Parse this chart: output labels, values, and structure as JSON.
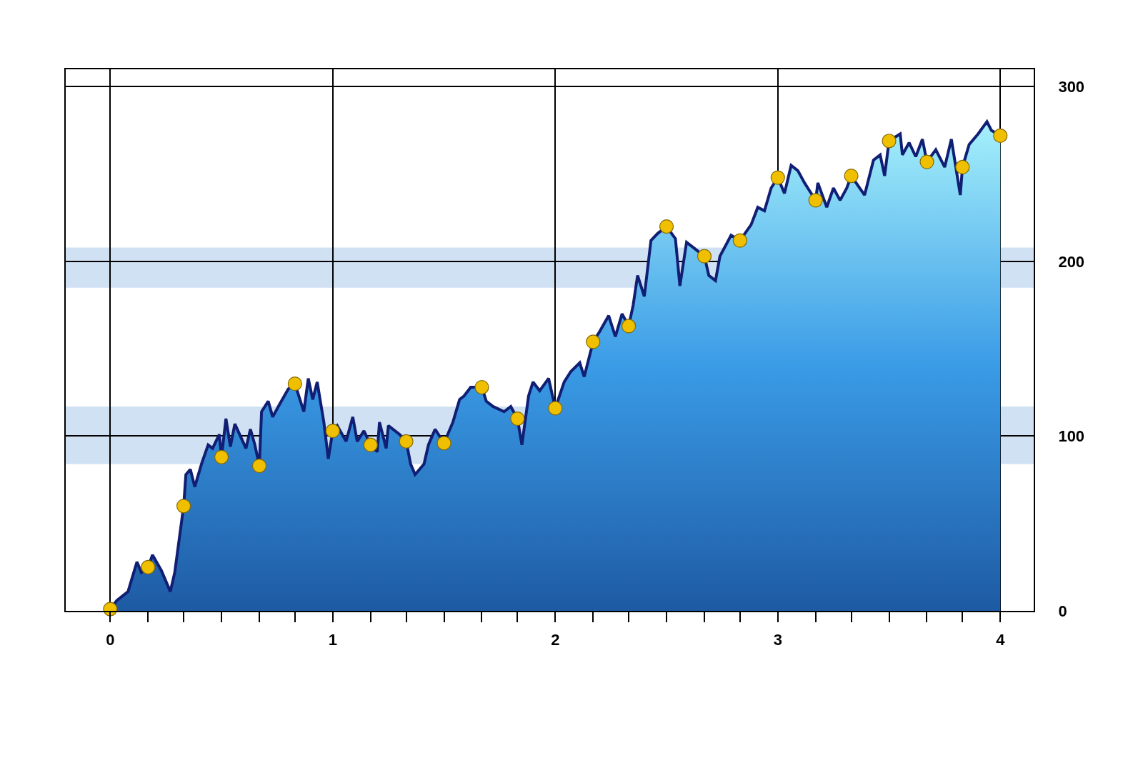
{
  "chart_data": {
    "type": "area",
    "xlim": [
      -0.2,
      4.15
    ],
    "xticks": [
      0,
      {
        "value": 0.17,
        "label": null
      },
      {
        "value": 0.33,
        "label": null
      },
      {
        "value": 0.5,
        "label": null
      },
      {
        "value": 0.67,
        "label": null
      },
      {
        "value": 0.83,
        "label": null
      },
      1,
      {
        "value": 1.17,
        "label": null
      },
      {
        "value": 1.33,
        "label": null
      },
      {
        "value": 1.5,
        "label": null
      },
      {
        "value": 1.67,
        "label": null
      },
      {
        "value": 1.83,
        "label": null
      },
      2,
      {
        "value": 2.17,
        "label": null
      },
      {
        "value": 2.33,
        "label": null
      },
      {
        "value": 2.5,
        "label": null
      },
      {
        "value": 2.67,
        "label": null
      },
      {
        "value": 2.83,
        "label": null
      },
      3,
      {
        "value": 3.17,
        "label": null
      },
      {
        "value": 3.33,
        "label": null
      },
      {
        "value": 3.5,
        "label": null
      },
      {
        "value": 3.67,
        "label": null
      },
      {
        "value": 3.83,
        "label": null
      },
      4
    ],
    "ylim": [
      0,
      310
    ],
    "yticks": [
      0,
      100,
      200,
      300
    ],
    "grid": true,
    "bands": [
      {
        "axis": "y",
        "from": 84,
        "to": 117,
        "color": "#bcd4ee"
      },
      {
        "axis": "y",
        "from": 185,
        "to": 208,
        "color": "#bcd4ee"
      }
    ],
    "series": [
      {
        "color": "#3a9be6",
        "marker": "none",
        "x": [
          0,
          0.03,
          0.08,
          0.12,
          0.14,
          0.17,
          0.19,
          0.23,
          0.27,
          0.29,
          0.33,
          0.34,
          0.36,
          0.38,
          0.41,
          0.44,
          0.46,
          0.49,
          0.5,
          0.52,
          0.54,
          0.56,
          0.61,
          0.63,
          0.65,
          0.67,
          0.68,
          0.71,
          0.73,
          0.76,
          0.8,
          0.83,
          0.87,
          0.89,
          0.91,
          0.93,
          0.96,
          0.98,
          1,
          1.02,
          1.06,
          1.09,
          1.11,
          1.14,
          1.17,
          1.2,
          1.21,
          1.24,
          1.25,
          1.3,
          1.33,
          1.35,
          1.37,
          1.41,
          1.43,
          1.46,
          1.5,
          1.54,
          1.57,
          1.59,
          1.62,
          1.67,
          1.69,
          1.72,
          1.77,
          1.8,
          1.83,
          1.85,
          1.88,
          1.9,
          1.93,
          1.97,
          2,
          2.04,
          2.07,
          2.11,
          2.13,
          2.17,
          2.2,
          2.24,
          2.27,
          2.3,
          2.33,
          2.35,
          2.37,
          2.4,
          2.43,
          2.46,
          2.5,
          2.54,
          2.56,
          2.59,
          2.62,
          2.67,
          2.69,
          2.72,
          2.74,
          2.79,
          2.83,
          2.88,
          2.91,
          2.94,
          2.97,
          3,
          3.03,
          3.06,
          3.09,
          3.12,
          3.14,
          3.17,
          3.18,
          3.22,
          3.25,
          3.28,
          3.31,
          3.33,
          3.39,
          3.43,
          3.46,
          3.48,
          3.5,
          3.55,
          3.56,
          3.59,
          3.62,
          3.65,
          3.67,
          3.71,
          3.75,
          3.78,
          3.82,
          3.83,
          3.86,
          3.9,
          3.94,
          3.96,
          4
        ],
        "values": [
          1,
          6,
          11,
          28,
          22,
          25,
          32,
          23,
          11,
          22,
          60,
          78,
          81,
          71,
          84,
          95,
          93,
          101,
          88,
          110,
          94,
          107,
          93,
          104,
          95,
          83,
          114,
          120,
          111,
          118,
          127,
          130,
          114,
          133,
          121,
          131,
          108,
          87,
          103,
          106,
          97,
          111,
          97,
          103,
          95,
          91,
          108,
          93,
          106,
          101,
          97,
          84,
          78,
          84,
          95,
          104,
          96,
          108,
          121,
          123,
          128,
          128,
          120,
          117,
          114,
          117,
          110,
          95,
          123,
          131,
          126,
          133,
          116,
          131,
          137,
          142,
          134,
          154,
          160,
          169,
          157,
          170,
          163,
          175,
          192,
          180,
          212,
          216,
          220,
          213,
          186,
          211,
          208,
          203,
          192,
          189,
          203,
          215,
          212,
          221,
          231,
          229,
          242,
          248,
          239,
          255,
          252,
          245,
          241,
          235,
          245,
          231,
          242,
          235,
          242,
          249,
          238,
          258,
          261,
          249,
          269,
          273,
          261,
          268,
          260,
          270,
          257,
          264,
          254,
          270,
          238,
          254,
          267,
          273,
          280,
          275,
          272
        ]
      },
      {
        "type": "scatter",
        "color": "#f0c000",
        "marker": "circle",
        "x": [
          0,
          0.17,
          0.33,
          0.5,
          0.67,
          0.83,
          1,
          1.17,
          1.33,
          1.5,
          1.67,
          1.83,
          2,
          2.17,
          2.33,
          2.5,
          2.67,
          2.83,
          3,
          3.17,
          3.33,
          3.5,
          3.67,
          3.83,
          4
        ],
        "values": [
          1,
          25,
          60,
          88,
          83,
          130,
          103,
          95,
          97,
          96,
          128,
          110,
          116,
          154,
          163,
          220,
          203,
          212,
          248,
          235,
          249,
          269,
          257,
          254,
          272
        ]
      }
    ]
  }
}
